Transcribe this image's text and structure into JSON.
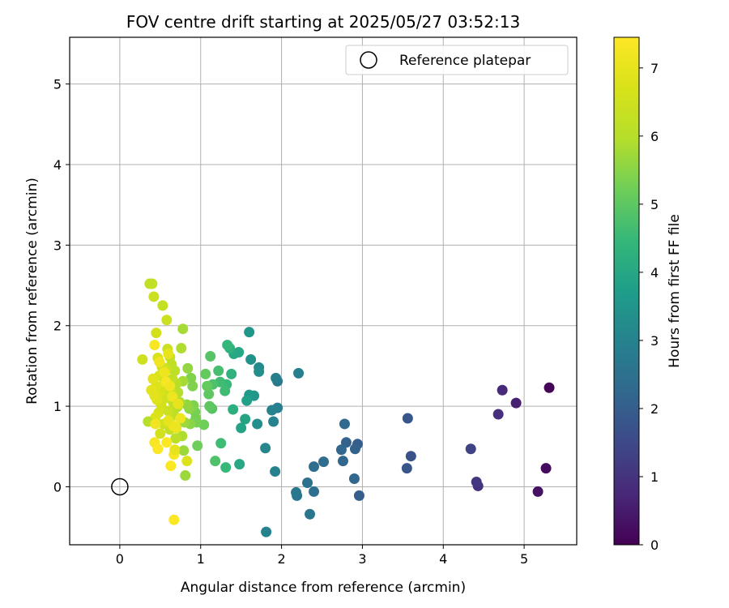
{
  "chart_data": {
    "type": "scatter",
    "title": "FOV centre drift starting at 2025/05/27 03:52:13",
    "xlabel": "Angular distance from reference (arcmin)",
    "ylabel": "Rotation from reference (arcmin)",
    "colorbar_label": "Hours from first FF file",
    "colormap": "viridis",
    "xlim": [
      -0.62,
      5.65
    ],
    "ylim": [
      -0.72,
      5.58
    ],
    "xticks": [
      0,
      1,
      2,
      3,
      4,
      5
    ],
    "yticks": [
      0,
      1,
      2,
      3,
      4,
      5
    ],
    "color_range": [
      0,
      7.45
    ],
    "colorbar_ticks": [
      0,
      1,
      2,
      3,
      4,
      5,
      6,
      7
    ],
    "grid": true,
    "legend": {
      "position": "top-right",
      "entries": [
        "Reference platepar"
      ]
    },
    "reference_point": {
      "x": 0,
      "y": 0
    },
    "points": [
      {
        "x": 5.31,
        "y": 1.23,
        "t": 0.1
      },
      {
        "x": 5.27,
        "y": 0.23,
        "t": 0.2
      },
      {
        "x": 5.17,
        "y": -0.06,
        "t": 0.3
      },
      {
        "x": 4.9,
        "y": 1.04,
        "t": 0.6
      },
      {
        "x": 4.73,
        "y": 1.2,
        "t": 0.8
      },
      {
        "x": 4.68,
        "y": 0.9,
        "t": 0.9
      },
      {
        "x": 4.43,
        "y": 0.01,
        "t": 1.0
      },
      {
        "x": 4.41,
        "y": 0.06,
        "t": 1.1
      },
      {
        "x": 4.34,
        "y": 0.47,
        "t": 1.3
      },
      {
        "x": 3.6,
        "y": 0.38,
        "t": 1.7
      },
      {
        "x": 3.56,
        "y": 0.85,
        "t": 1.8
      },
      {
        "x": 3.55,
        "y": 0.23,
        "t": 1.8
      },
      {
        "x": 2.96,
        "y": -0.11,
        "t": 2.0
      },
      {
        "x": 2.94,
        "y": 0.53,
        "t": 2.0
      },
      {
        "x": 2.91,
        "y": 0.47,
        "t": 2.1
      },
      {
        "x": 2.9,
        "y": 0.1,
        "t": 2.2
      },
      {
        "x": 2.8,
        "y": 0.55,
        "t": 2.1
      },
      {
        "x": 2.78,
        "y": 0.78,
        "t": 2.3
      },
      {
        "x": 2.76,
        "y": 0.32,
        "t": 2.2
      },
      {
        "x": 2.74,
        "y": 0.46,
        "t": 2.2
      },
      {
        "x": 2.52,
        "y": 0.31,
        "t": 2.4
      },
      {
        "x": 2.4,
        "y": 0.25,
        "t": 2.4
      },
      {
        "x": 2.4,
        "y": -0.06,
        "t": 2.5
      },
      {
        "x": 2.35,
        "y": -0.34,
        "t": 2.6
      },
      {
        "x": 2.32,
        "y": 0.05,
        "t": 2.5
      },
      {
        "x": 2.21,
        "y": 1.41,
        "t": 2.9
      },
      {
        "x": 2.19,
        "y": -0.11,
        "t": 2.6
      },
      {
        "x": 2.18,
        "y": -0.07,
        "t": 2.7
      },
      {
        "x": 1.95,
        "y": 0.98,
        "t": 2.9
      },
      {
        "x": 1.95,
        "y": 1.31,
        "t": 2.7
      },
      {
        "x": 1.93,
        "y": 1.35,
        "t": 2.9
      },
      {
        "x": 1.92,
        "y": 0.19,
        "t": 3.0
      },
      {
        "x": 1.9,
        "y": 0.81,
        "t": 3.0
      },
      {
        "x": 1.88,
        "y": 0.95,
        "t": 3.0
      },
      {
        "x": 1.81,
        "y": -0.56,
        "t": 3.0
      },
      {
        "x": 1.8,
        "y": 0.48,
        "t": 3.1
      },
      {
        "x": 1.72,
        "y": 1.48,
        "t": 3.2
      },
      {
        "x": 1.72,
        "y": 1.43,
        "t": 3.3
      },
      {
        "x": 1.7,
        "y": 0.78,
        "t": 3.3
      },
      {
        "x": 1.66,
        "y": 1.13,
        "t": 3.5
      },
      {
        "x": 1.62,
        "y": 1.58,
        "t": 3.4
      },
      {
        "x": 1.6,
        "y": 1.92,
        "t": 3.5
      },
      {
        "x": 1.6,
        "y": 1.14,
        "t": 3.6
      },
      {
        "x": 1.57,
        "y": 1.07,
        "t": 3.8
      },
      {
        "x": 1.55,
        "y": 0.84,
        "t": 3.9
      },
      {
        "x": 1.5,
        "y": 0.73,
        "t": 3.9
      },
      {
        "x": 1.48,
        "y": 0.28,
        "t": 4.0
      },
      {
        "x": 1.47,
        "y": 1.67,
        "t": 4.0
      },
      {
        "x": 1.41,
        "y": 1.65,
        "t": 4.0
      },
      {
        "x": 1.4,
        "y": 0.96,
        "t": 4.2
      },
      {
        "x": 1.38,
        "y": 1.4,
        "t": 4.3
      },
      {
        "x": 1.36,
        "y": 1.72,
        "t": 4.3
      },
      {
        "x": 1.33,
        "y": 1.76,
        "t": 4.4
      },
      {
        "x": 1.32,
        "y": 1.27,
        "t": 4.5
      },
      {
        "x": 1.31,
        "y": 0.24,
        "t": 4.5
      },
      {
        "x": 1.3,
        "y": 1.19,
        "t": 4.6
      },
      {
        "x": 1.25,
        "y": 0.54,
        "t": 4.6
      },
      {
        "x": 1.24,
        "y": 1.3,
        "t": 4.6
      },
      {
        "x": 1.22,
        "y": 1.44,
        "t": 4.7
      },
      {
        "x": 1.18,
        "y": 0.32,
        "t": 4.8
      },
      {
        "x": 1.15,
        "y": 1.27,
        "t": 4.8
      },
      {
        "x": 1.14,
        "y": 0.97,
        "t": 4.9
      },
      {
        "x": 1.12,
        "y": 1.62,
        "t": 4.9
      },
      {
        "x": 1.11,
        "y": 1.0,
        "t": 5.0
      },
      {
        "x": 1.1,
        "y": 1.15,
        "t": 5.0
      },
      {
        "x": 1.08,
        "y": 1.25,
        "t": 5.1
      },
      {
        "x": 1.06,
        "y": 1.4,
        "t": 5.1
      },
      {
        "x": 1.04,
        "y": 0.77,
        "t": 5.2
      },
      {
        "x": 0.96,
        "y": 0.51,
        "t": 5.2
      },
      {
        "x": 0.95,
        "y": 0.8,
        "t": 5.3
      },
      {
        "x": 0.94,
        "y": 0.85,
        "t": 5.3
      },
      {
        "x": 0.93,
        "y": 0.93,
        "t": 5.3
      },
      {
        "x": 0.91,
        "y": 1.01,
        "t": 5.4
      },
      {
        "x": 0.9,
        "y": 1.25,
        "t": 5.4
      },
      {
        "x": 0.88,
        "y": 1.35,
        "t": 5.4
      },
      {
        "x": 0.87,
        "y": 0.78,
        "t": 5.5
      },
      {
        "x": 0.86,
        "y": 0.97,
        "t": 5.5
      },
      {
        "x": 0.84,
        "y": 1.47,
        "t": 5.6
      },
      {
        "x": 0.83,
        "y": 1.02,
        "t": 5.6
      },
      {
        "x": 0.81,
        "y": 0.14,
        "t": 5.7
      },
      {
        "x": 0.8,
        "y": 0.8,
        "t": 5.7
      },
      {
        "x": 0.79,
        "y": 0.45,
        "t": 5.7
      },
      {
        "x": 0.78,
        "y": 1.96,
        "t": 5.8
      },
      {
        "x": 0.78,
        "y": 1.31,
        "t": 5.8
      },
      {
        "x": 0.77,
        "y": 0.63,
        "t": 5.9
      },
      {
        "x": 0.76,
        "y": 1.72,
        "t": 5.9
      },
      {
        "x": 0.74,
        "y": 1.05,
        "t": 5.9
      },
      {
        "x": 0.72,
        "y": 1.17,
        "t": 6.0
      },
      {
        "x": 0.71,
        "y": 0.99,
        "t": 6.0
      },
      {
        "x": 0.7,
        "y": 1.28,
        "t": 6.0
      },
      {
        "x": 0.69,
        "y": 0.6,
        "t": 6.1
      },
      {
        "x": 0.68,
        "y": 1.44,
        "t": 6.1
      },
      {
        "x": 0.67,
        "y": 0.89,
        "t": 6.1
      },
      {
        "x": 0.66,
        "y": 1.05,
        "t": 6.2
      },
      {
        "x": 0.65,
        "y": 1.34,
        "t": 6.2
      },
      {
        "x": 0.64,
        "y": 1.52,
        "t": 6.2
      },
      {
        "x": 0.63,
        "y": 1.21,
        "t": 6.3
      },
      {
        "x": 0.62,
        "y": 0.71,
        "t": 6.3
      },
      {
        "x": 0.62,
        "y": 1.61,
        "t": 6.3
      },
      {
        "x": 0.61,
        "y": 1.15,
        "t": 6.4
      },
      {
        "x": 0.6,
        "y": 0.94,
        "t": 6.4
      },
      {
        "x": 0.59,
        "y": 1.71,
        "t": 6.4
      },
      {
        "x": 0.58,
        "y": 2.07,
        "t": 6.4
      },
      {
        "x": 0.57,
        "y": 1.45,
        "t": 6.5
      },
      {
        "x": 0.56,
        "y": 1.1,
        "t": 6.5
      },
      {
        "x": 0.55,
        "y": 1.33,
        "t": 6.5
      },
      {
        "x": 0.54,
        "y": 0.78,
        "t": 6.5
      },
      {
        "x": 0.53,
        "y": 1.24,
        "t": 6.6
      },
      {
        "x": 0.53,
        "y": 2.25,
        "t": 6.3
      },
      {
        "x": 0.52,
        "y": 1.49,
        "t": 6.6
      },
      {
        "x": 0.51,
        "y": 1.02,
        "t": 6.6
      },
      {
        "x": 0.5,
        "y": 0.66,
        "t": 6.6
      },
      {
        "x": 0.5,
        "y": 1.18,
        "t": 6.7
      },
      {
        "x": 0.49,
        "y": 1.38,
        "t": 6.7
      },
      {
        "x": 0.48,
        "y": 0.92,
        "t": 6.7
      },
      {
        "x": 0.47,
        "y": 1.6,
        "t": 6.7
      },
      {
        "x": 0.46,
        "y": 1.08,
        "t": 6.8
      },
      {
        "x": 0.45,
        "y": 1.91,
        "t": 6.6
      },
      {
        "x": 0.45,
        "y": 1.25,
        "t": 6.8
      },
      {
        "x": 0.44,
        "y": 0.86,
        "t": 6.8
      },
      {
        "x": 0.43,
        "y": 1.13,
        "t": 6.9
      },
      {
        "x": 0.42,
        "y": 2.36,
        "t": 6.4
      },
      {
        "x": 0.41,
        "y": 1.34,
        "t": 6.9
      },
      {
        "x": 0.4,
        "y": 2.52,
        "t": 6.3
      },
      {
        "x": 0.39,
        "y": 1.2,
        "t": 6.9
      },
      {
        "x": 0.37,
        "y": 2.52,
        "t": 6.2
      },
      {
        "x": 0.35,
        "y": 0.81,
        "t": 6.0
      },
      {
        "x": 0.28,
        "y": 1.58,
        "t": 6.5
      },
      {
        "x": 0.43,
        "y": 1.76,
        "t": 7.3
      },
      {
        "x": 0.43,
        "y": 0.55,
        "t": 7.3
      },
      {
        "x": 0.44,
        "y": 0.78,
        "t": 7.2
      },
      {
        "x": 0.47,
        "y": 0.47,
        "t": 7.4
      },
      {
        "x": 0.49,
        "y": 1.55,
        "t": 7.2
      },
      {
        "x": 0.55,
        "y": 1.42,
        "t": 7.1
      },
      {
        "x": 0.57,
        "y": 1.3,
        "t": 7.3
      },
      {
        "x": 0.58,
        "y": 0.55,
        "t": 7.4
      },
      {
        "x": 0.6,
        "y": 1.65,
        "t": 7.0
      },
      {
        "x": 0.62,
        "y": 1.25,
        "t": 7.2
      },
      {
        "x": 0.63,
        "y": 0.26,
        "t": 7.4
      },
      {
        "x": 0.65,
        "y": 1.12,
        "t": 7.1
      },
      {
        "x": 0.66,
        "y": 0.76,
        "t": 7.2
      },
      {
        "x": 0.67,
        "y": -0.41,
        "t": 7.4
      },
      {
        "x": 0.67,
        "y": 0.4,
        "t": 7.3
      },
      {
        "x": 0.68,
        "y": 0.46,
        "t": 7.0
      },
      {
        "x": 0.7,
        "y": 0.73,
        "t": 7.1
      },
      {
        "x": 0.72,
        "y": 1.03,
        "t": 7.0
      },
      {
        "x": 0.75,
        "y": 0.85,
        "t": 7.1
      },
      {
        "x": 0.83,
        "y": 0.32,
        "t": 6.8
      },
      {
        "x": 0.6,
        "y": 0.82,
        "t": 7.0
      }
    ]
  }
}
